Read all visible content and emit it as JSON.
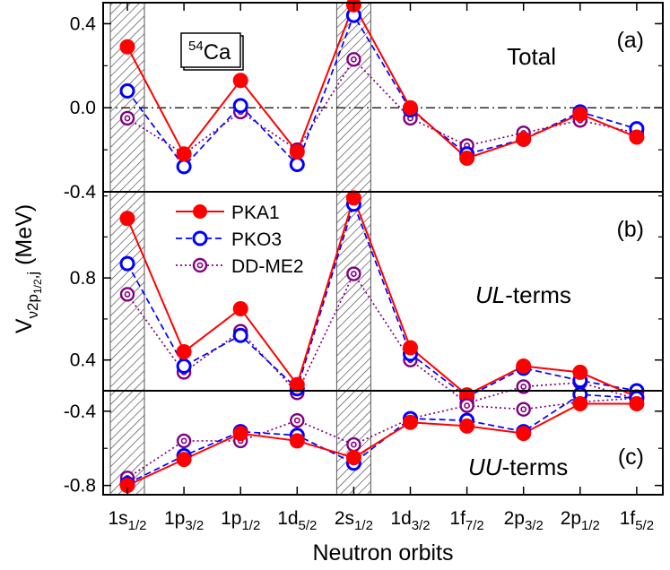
{
  "chart_data": {
    "type": "line",
    "xlabel": "Neutron orbits",
    "ylabel": {
      "prefix": "V",
      "sub": "ν2p",
      "subsub": "1/2",
      "sub2": ",j",
      "unit": " (MeV)"
    },
    "categories": [
      {
        "base": "1s",
        "sub": "1/2"
      },
      {
        "base": "1p",
        "sub": "3/2"
      },
      {
        "base": "1p",
        "sub": "1/2"
      },
      {
        "base": "1d",
        "sub": "5/2"
      },
      {
        "base": "2s",
        "sub": "1/2"
      },
      {
        "base": "1d",
        "sub": "3/2"
      },
      {
        "base": "1f",
        "sub": "7/2"
      },
      {
        "base": "2p",
        "sub": "3/2"
      },
      {
        "base": "2p",
        "sub": "1/2"
      },
      {
        "base": "1f",
        "sub": "5/2"
      }
    ],
    "highlight_bands": [
      0,
      4
    ],
    "nucleus": {
      "mass": "54",
      "symbol": "Ca"
    },
    "series_style": [
      {
        "name": "PKA1",
        "color": "#ff0000",
        "line": "solid",
        "marker": "filled-circle"
      },
      {
        "name": "PKO3",
        "color": "#0000ff",
        "line": "dashed",
        "marker": "open-circle"
      },
      {
        "name": "DD-ME2",
        "color": "#800080",
        "line": "dotted",
        "marker": "double-circle"
      }
    ],
    "panels": [
      {
        "id": "a",
        "tag": "(a)",
        "label": "Total",
        "label_italic": false,
        "ylim": [
          -0.4,
          0.5
        ],
        "yticks": [
          0.4,
          0.0,
          -0.4
        ],
        "yticklabels": [
          "0.4",
          "0.0",
          "-0.4"
        ],
        "zero_line": true,
        "series": [
          {
            "name": "PKA1",
            "values": [
              0.29,
              -0.22,
              0.13,
              -0.21,
              0.49,
              0.0,
              -0.24,
              -0.15,
              -0.03,
              -0.14
            ]
          },
          {
            "name": "PKO3",
            "values": [
              0.08,
              -0.28,
              0.01,
              -0.27,
              0.44,
              -0.01,
              -0.22,
              -0.15,
              -0.02,
              -0.1
            ]
          },
          {
            "name": "DD-ME2",
            "values": [
              -0.05,
              -0.22,
              -0.02,
              -0.2,
              0.23,
              -0.05,
              -0.18,
              -0.12,
              -0.06,
              -0.12
            ]
          }
        ]
      },
      {
        "id": "b",
        "tag": "(b)",
        "label": "UL-terms",
        "label_italic": true,
        "ylim": [
          0.25,
          1.22
        ],
        "yticks": [
          0.8,
          0.4
        ],
        "yticklabels": [
          "0.8",
          "0.4"
        ],
        "zero_line": false,
        "series": [
          {
            "name": "PKA1",
            "values": [
              1.09,
              0.44,
              0.65,
              0.28,
              1.19,
              0.46,
              0.23,
              0.37,
              0.34,
              0.22
            ]
          },
          {
            "name": "PKO3",
            "values": [
              0.87,
              0.37,
              0.52,
              0.26,
              1.16,
              0.43,
              0.22,
              0.36,
              0.3,
              0.25
            ]
          },
          {
            "name": "DD-ME2",
            "values": [
              0.72,
              0.34,
              0.54,
              0.24,
              0.82,
              0.4,
              0.19,
              0.27,
              0.29,
              0.21
            ]
          }
        ]
      },
      {
        "id": "c",
        "tag": "(c)",
        "label": "UU-terms",
        "label_italic": true,
        "ylim": [
          -0.85,
          -0.29
        ],
        "yticks": [
          -0.4,
          -0.8
        ],
        "yticklabels": [
          "-0.4",
          "-0.8"
        ],
        "zero_line": false,
        "series": [
          {
            "name": "PKA1",
            "values": [
              -0.8,
              -0.66,
              -0.52,
              -0.56,
              -0.65,
              -0.46,
              -0.48,
              -0.52,
              -0.36,
              -0.36
            ]
          },
          {
            "name": "PKO3",
            "values": [
              -0.79,
              -0.64,
              -0.51,
              -0.53,
              -0.68,
              -0.44,
              -0.45,
              -0.51,
              -0.31,
              -0.33
            ]
          },
          {
            "name": "DD-ME2",
            "values": [
              -0.76,
              -0.56,
              -0.56,
              -0.45,
              -0.58,
              -0.44,
              -0.37,
              -0.39,
              -0.35,
              -0.33
            ]
          }
        ]
      }
    ]
  }
}
